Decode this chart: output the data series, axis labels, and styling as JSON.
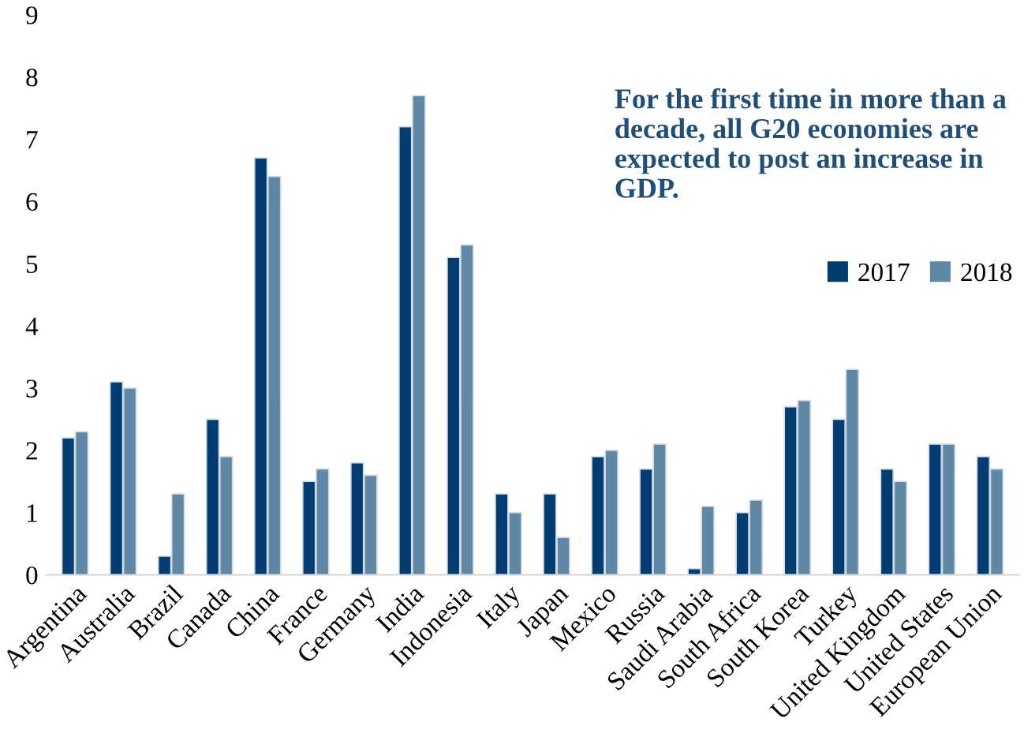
{
  "chart_data": {
    "type": "bar",
    "categories": [
      "Argentina",
      "Australia",
      "Brazil",
      "Canada",
      "China",
      "France",
      "Germany",
      "India",
      "Indonesia",
      "Italy",
      "Japan",
      "Mexico",
      "Russia",
      "Saudi Arabia",
      "South Africa",
      "South Korea",
      "Turkey",
      "United Kingdom",
      "United States",
      "European Union"
    ],
    "series": [
      {
        "name": "2017",
        "color": "#003d73",
        "values": [
          2.2,
          3.1,
          0.3,
          2.5,
          6.7,
          1.5,
          1.8,
          7.2,
          5.1,
          1.3,
          1.3,
          1.9,
          1.7,
          0.1,
          1.0,
          2.7,
          2.5,
          1.7,
          2.1,
          1.9
        ]
      },
      {
        "name": "2018",
        "color": "#5f88a6",
        "values": [
          2.3,
          3.0,
          1.3,
          1.9,
          6.4,
          1.7,
          1.6,
          7.7,
          5.3,
          1.0,
          0.6,
          2.0,
          2.1,
          1.1,
          1.2,
          2.8,
          3.3,
          1.5,
          2.1,
          1.7
        ]
      }
    ],
    "ylim": [
      0,
      9
    ],
    "yticks": [
      0,
      1,
      2,
      3,
      4,
      5,
      6,
      7,
      8,
      9
    ],
    "legend": "right",
    "annotations": [
      "For the first time in more than a decade, all G20 economies are expected to post an increase in GDP."
    ]
  }
}
